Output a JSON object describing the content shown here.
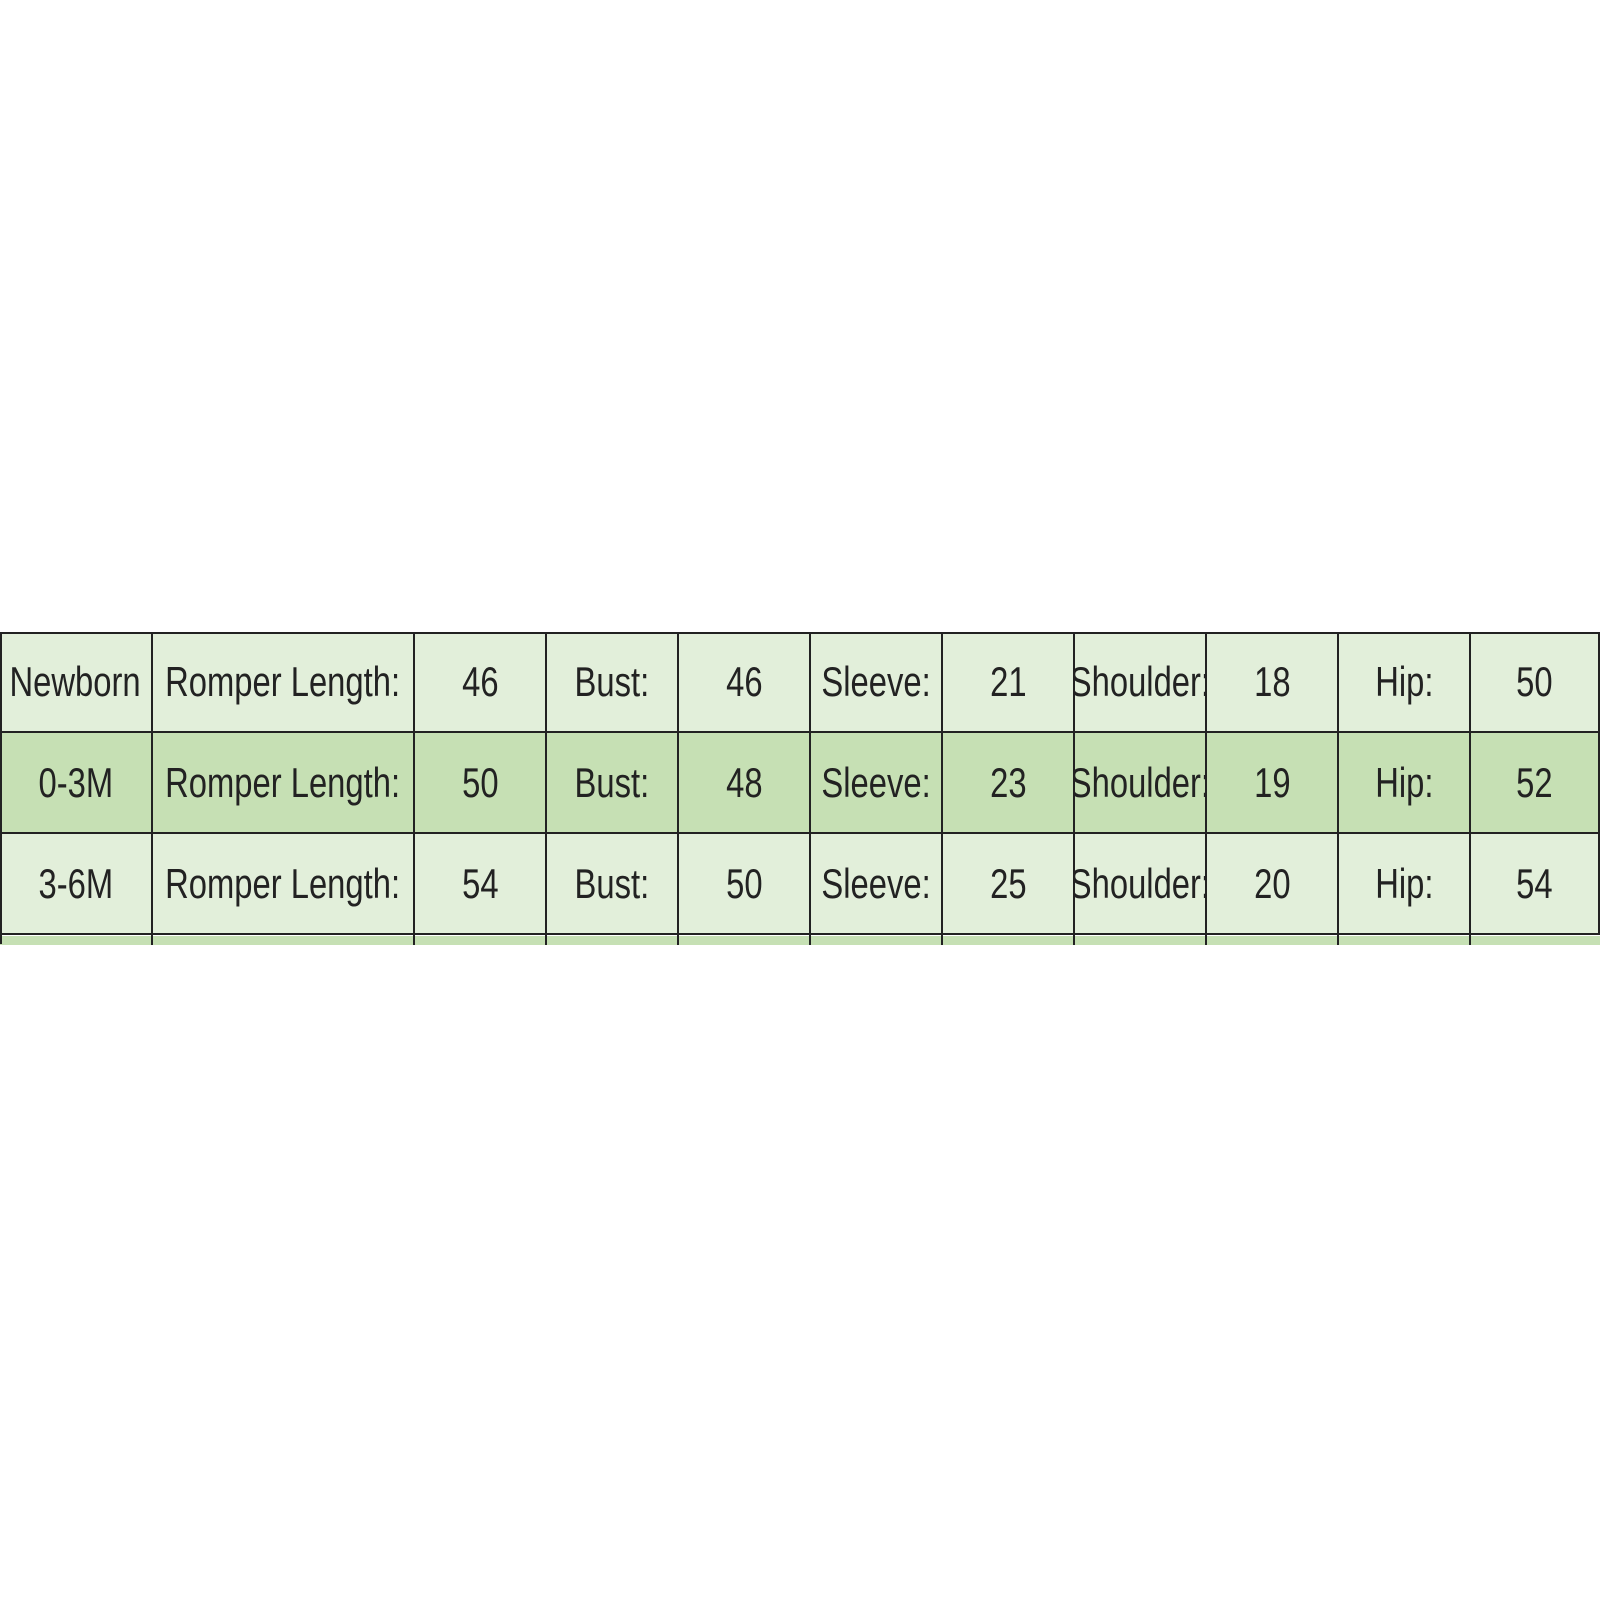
{
  "table": {
    "rows": [
      [
        "Newborn",
        "Romper Length:",
        46,
        "Bust:",
        46,
        "Sleeve:",
        21,
        "Shoulder:",
        18,
        "Hip:",
        50
      ],
      [
        "0-3M",
        "Romper Length:",
        50,
        "Bust:",
        48,
        "Sleeve:",
        23,
        "Shoulder:",
        19,
        "Hip:",
        52
      ],
      [
        "3-6M",
        "Romper Length:",
        54,
        "Bust:",
        50,
        "Sleeve:",
        25,
        "Shoulder:",
        20,
        "Hip:",
        54
      ]
    ]
  }
}
